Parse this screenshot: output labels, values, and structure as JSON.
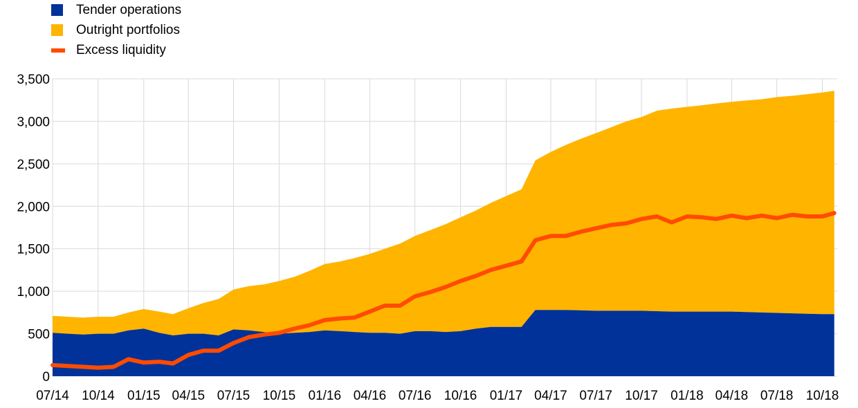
{
  "chart_data": {
    "type": "area",
    "title": "",
    "xlabel": "",
    "ylabel": "",
    "ylim": [
      0,
      3500
    ],
    "yticks": [
      "0",
      "500",
      "1,000",
      "1,500",
      "2,000",
      "2,500",
      "3,000",
      "3,500"
    ],
    "ytick_values": [
      0,
      500,
      1000,
      1500,
      2000,
      2500,
      3000,
      3500
    ],
    "xlim": [
      "2014-07-01",
      "2018-10-31"
    ],
    "xticks": [
      "07/14",
      "10/14",
      "01/15",
      "04/15",
      "07/15",
      "10/15",
      "01/16",
      "04/16",
      "07/16",
      "10/16",
      "01/17",
      "04/17",
      "07/17",
      "10/17",
      "01/18",
      "04/18",
      "07/18",
      "10/18"
    ],
    "grid": true,
    "legend": "top-left",
    "x": [
      "2014-07-01",
      "2014-08-01",
      "2014-09-01",
      "2014-10-01",
      "2014-11-01",
      "2014-12-01",
      "2015-01-01",
      "2015-02-01",
      "2015-03-01",
      "2015-04-01",
      "2015-05-01",
      "2015-06-01",
      "2015-07-01",
      "2015-08-01",
      "2015-09-01",
      "2015-10-01",
      "2015-11-01",
      "2015-12-01",
      "2016-01-01",
      "2016-02-01",
      "2016-03-01",
      "2016-04-01",
      "2016-05-01",
      "2016-06-01",
      "2016-07-01",
      "2016-08-01",
      "2016-09-01",
      "2016-10-01",
      "2016-11-01",
      "2016-12-01",
      "2017-01-01",
      "2017-02-01",
      "2017-03-01",
      "2017-04-01",
      "2017-05-01",
      "2017-06-01",
      "2017-07-01",
      "2017-08-01",
      "2017-09-01",
      "2017-10-01",
      "2017-11-01",
      "2017-12-01",
      "2018-01-01",
      "2018-02-01",
      "2018-03-01",
      "2018-04-01",
      "2018-05-01",
      "2018-06-01",
      "2018-07-01",
      "2018-08-01",
      "2018-09-01",
      "2018-10-01",
      "2018-10-25"
    ],
    "series": [
      {
        "name": "Tender operations",
        "color": "#003299",
        "kind": "stacked-area",
        "values": [
          510,
          500,
          490,
          500,
          500,
          540,
          560,
          510,
          480,
          500,
          500,
          480,
          550,
          540,
          520,
          500,
          510,
          520,
          540,
          530,
          520,
          510,
          510,
          500,
          530,
          530,
          520,
          530,
          560,
          580,
          580,
          580,
          780,
          780,
          780,
          775,
          770,
          770,
          770,
          770,
          765,
          760,
          760,
          760,
          760,
          760,
          755,
          750,
          745,
          740,
          735,
          730,
          730
        ]
      },
      {
        "name": "Outright portfolios",
        "color": "#FFB400",
        "kind": "stacked-area",
        "values": [
          200,
          200,
          200,
          200,
          200,
          210,
          230,
          250,
          250,
          300,
          360,
          430,
          470,
          520,
          560,
          620,
          660,
          720,
          780,
          820,
          870,
          930,
          990,
          1060,
          1120,
          1190,
          1270,
          1340,
          1390,
          1460,
          1540,
          1620,
          1760,
          1860,
          1940,
          2020,
          2090,
          2160,
          2230,
          2280,
          2360,
          2390,
          2410,
          2430,
          2450,
          2470,
          2490,
          2510,
          2540,
          2560,
          2585,
          2610,
          2630
        ]
      },
      {
        "name": "Excess liquidity",
        "color": "#FF4B00",
        "kind": "line",
        "values": [
          130,
          120,
          110,
          100,
          110,
          200,
          160,
          170,
          150,
          250,
          300,
          300,
          390,
          460,
          490,
          510,
          560,
          600,
          660,
          680,
          690,
          760,
          830,
          830,
          940,
          990,
          1050,
          1120,
          1180,
          1250,
          1300,
          1350,
          1600,
          1650,
          1650,
          1700,
          1740,
          1780,
          1800,
          1850,
          1880,
          1810,
          1880,
          1870,
          1850,
          1890,
          1860,
          1890,
          1860,
          1900,
          1880,
          1880,
          1920
        ]
      }
    ]
  }
}
